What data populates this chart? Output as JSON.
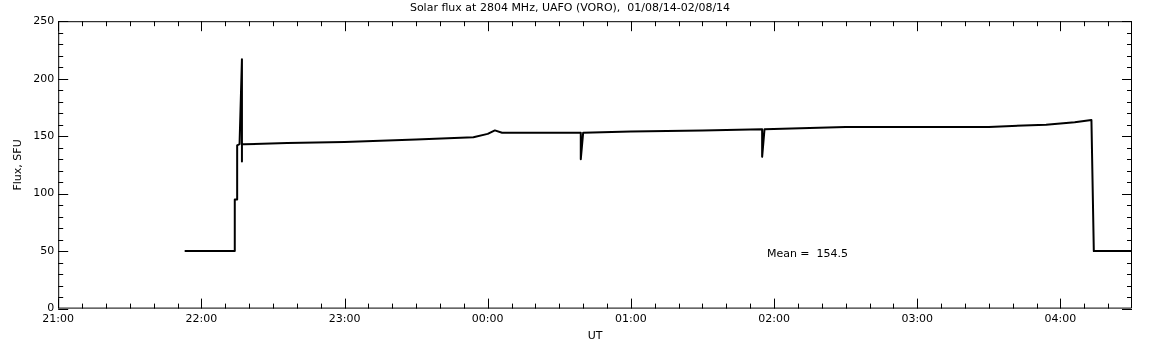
{
  "chart_data": {
    "type": "line",
    "title": "Solar flux at 2804 MHz, UAFO (VORO),  01/08/14-02/08/14",
    "xlabel": "UT",
    "ylabel": "Flux, SFU",
    "annotations": [
      "Mean =  154.5"
    ],
    "series": [
      {
        "color": "#000000",
        "x": [
          "--08-01T21:53",
          "--08-01T22:14",
          "--08-01T22:14",
          "--08-01T22:15",
          "--08-01T22:15",
          "--08-01T22:16",
          "--08-01T22:17",
          "--08-01T22:17",
          "--08-01T22:17",
          "--08-01T22:18",
          "--08-01T22:36",
          "--08-01T23:00",
          "--08-01T23:30",
          "--08-01T23:54",
          "--08-02T00:00",
          "--08-02T00:03",
          "--08-02T00:06",
          "--08-02T00:18",
          "--08-02T00:39",
          "--08-02T00:39",
          "--08-02T00:40",
          "--08-02T01:00",
          "--08-02T01:30",
          "--08-02T01:55",
          "--08-02T01:55",
          "--08-02T01:56",
          "--08-02T02:30",
          "--08-02T03:00",
          "--08-02T03:30",
          "--08-02T03:54",
          "--08-02T04:06",
          "--08-02T04:13",
          "--08-02T04:14",
          "--08-02T04:30"
        ],
        "values": [
          50,
          50,
          95,
          95,
          142,
          143,
          217,
          128,
          143,
          143,
          144,
          145,
          147,
          149,
          152,
          155,
          153,
          153,
          153,
          130,
          153,
          154,
          155,
          156,
          132,
          156,
          158,
          158,
          158,
          160,
          162,
          164,
          50,
          50
        ]
      }
    ],
    "xlim": [
      "--08-01T21:00",
      "--08-02T04:30"
    ],
    "ylim": [
      0,
      250
    ],
    "xticks": [
      {
        "value": "--08-01T21:00",
        "label": "21:00"
      },
      {
        "value": "--08-01T21:10",
        "label": null
      },
      {
        "value": "--08-01T21:20",
        "label": null
      },
      {
        "value": "--08-01T21:30",
        "label": null
      },
      {
        "value": "--08-01T21:40",
        "label": null
      },
      {
        "value": "--08-01T21:50",
        "label": null
      },
      {
        "value": "--08-01T22:00",
        "label": "22:00"
      },
      {
        "value": "--08-01T22:10",
        "label": null
      },
      {
        "value": "--08-01T22:20",
        "label": null
      },
      {
        "value": "--08-01T22:30",
        "label": null
      },
      {
        "value": "--08-01T22:40",
        "label": null
      },
      {
        "value": "--08-01T22:50",
        "label": null
      },
      {
        "value": "--08-01T23:00",
        "label": "23:00"
      },
      {
        "value": "--08-01T23:10",
        "label": null
      },
      {
        "value": "--08-01T23:20",
        "label": null
      },
      {
        "value": "--08-01T23:30",
        "label": null
      },
      {
        "value": "--08-01T23:40",
        "label": null
      },
      {
        "value": "--08-01T23:50",
        "label": null
      },
      {
        "value": "--08-02T00:00",
        "label": "00:00"
      },
      {
        "value": "--08-02T00:10",
        "label": null
      },
      {
        "value": "--08-02T00:20",
        "label": null
      },
      {
        "value": "--08-02T00:30",
        "label": null
      },
      {
        "value": "--08-02T00:40",
        "label": null
      },
      {
        "value": "--08-02T00:50",
        "label": null
      },
      {
        "value": "--08-02T01:00",
        "label": "01:00"
      },
      {
        "value": "--08-02T01:10",
        "label": null
      },
      {
        "value": "--08-02T01:20",
        "label": null
      },
      {
        "value": "--08-02T01:30",
        "label": null
      },
      {
        "value": "--08-02T01:40",
        "label": null
      },
      {
        "value": "--08-02T01:50",
        "label": null
      },
      {
        "value": "--08-02T02:00",
        "label": "02:00"
      },
      {
        "value": "--08-02T02:10",
        "label": null
      },
      {
        "value": "--08-02T02:20",
        "label": null
      },
      {
        "value": "--08-02T02:30",
        "label": null
      },
      {
        "value": "--08-02T02:40",
        "label": null
      },
      {
        "value": "--08-02T02:50",
        "label": null
      },
      {
        "value": "--08-02T03:00",
        "label": "03:00"
      },
      {
        "value": "--08-02T03:10",
        "label": null
      },
      {
        "value": "--08-02T03:20",
        "label": null
      },
      {
        "value": "--08-02T03:30",
        "label": null
      },
      {
        "value": "--08-02T03:40",
        "label": null
      },
      {
        "value": "--08-02T03:50",
        "label": null
      },
      {
        "value": "--08-02T04:00",
        "label": "04:00"
      },
      {
        "value": "--08-02T04:10",
        "label": null
      },
      {
        "value": "--08-02T04:20",
        "label": null
      }
    ],
    "yticks": [
      0,
      {
        "value": 10,
        "label": null
      },
      {
        "value": 20,
        "label": null
      },
      {
        "value": 30,
        "label": null
      },
      {
        "value": 40,
        "label": null
      },
      50,
      {
        "value": 60,
        "label": null
      },
      {
        "value": 70,
        "label": null
      },
      {
        "value": 80,
        "label": null
      },
      {
        "value": 90,
        "label": null
      },
      100,
      {
        "value": 110,
        "label": null
      },
      {
        "value": 120,
        "label": null
      },
      {
        "value": 130,
        "label": null
      },
      {
        "value": 140,
        "label": null
      },
      150,
      {
        "value": 160,
        "label": null
      },
      {
        "value": 170,
        "label": null
      },
      {
        "value": 180,
        "label": null
      },
      {
        "value": 190,
        "label": null
      },
      200,
      {
        "value": 210,
        "label": null
      },
      {
        "value": 220,
        "label": null
      },
      {
        "value": 230,
        "label": null
      },
      {
        "value": 240,
        "label": null
      },
      250
    ]
  }
}
